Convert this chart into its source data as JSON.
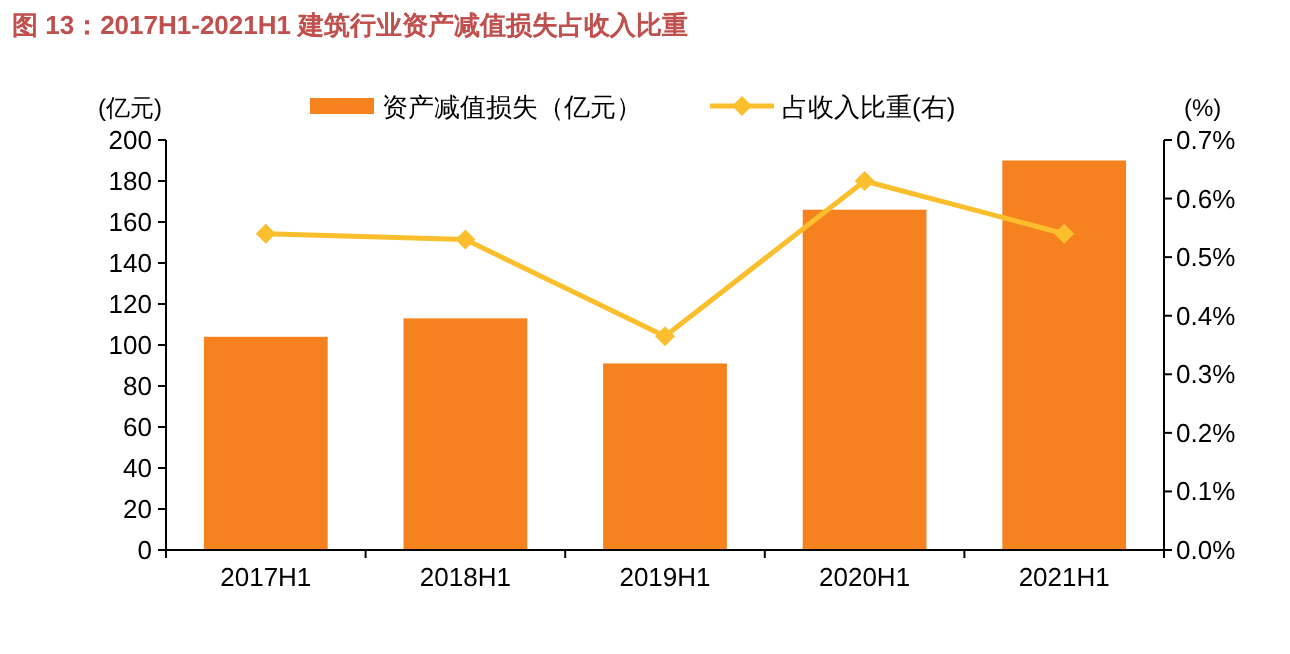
{
  "chart_data": {
    "type": "bar",
    "title": "图 13：2017H1-2021H1 建筑行业资产减值损失占收入比重",
    "ylabel": "(亿元)",
    "y2label": "(%)",
    "categories": [
      "2017H1",
      "2018H1",
      "2019H1",
      "2020H1",
      "2021H1"
    ],
    "series": [
      {
        "name": "资产减值损失（亿元）",
        "color": "#f5821f",
        "values": [
          104,
          113,
          91,
          166,
          190
        ]
      },
      {
        "name": "占收入比重(右)",
        "type": "line",
        "axis": "y2",
        "color": "#fbbf2d",
        "marker": "diamond",
        "values": [
          0.54,
          0.53,
          0.365,
          0.63,
          0.54
        ]
      }
    ],
    "ylim": [
      0,
      200
    ],
    "yticks": [
      0,
      20,
      40,
      60,
      80,
      100,
      120,
      140,
      160,
      180,
      200
    ],
    "y2lim": [
      0,
      0.7
    ],
    "y2ticks": [
      {
        "value": 0,
        "label": "0.0%"
      },
      {
        "value": 0.1,
        "label": "0.1%"
      },
      {
        "value": 0.2,
        "label": "0.2%"
      },
      {
        "value": 0.3,
        "label": "0.3%"
      },
      {
        "value": 0.4,
        "label": "0.4%"
      },
      {
        "value": 0.5,
        "label": "0.5%"
      },
      {
        "value": 0.6,
        "label": "0.6%"
      },
      {
        "value": 0.7,
        "label": "0.7%"
      }
    ],
    "legend": "top",
    "grid": false
  }
}
